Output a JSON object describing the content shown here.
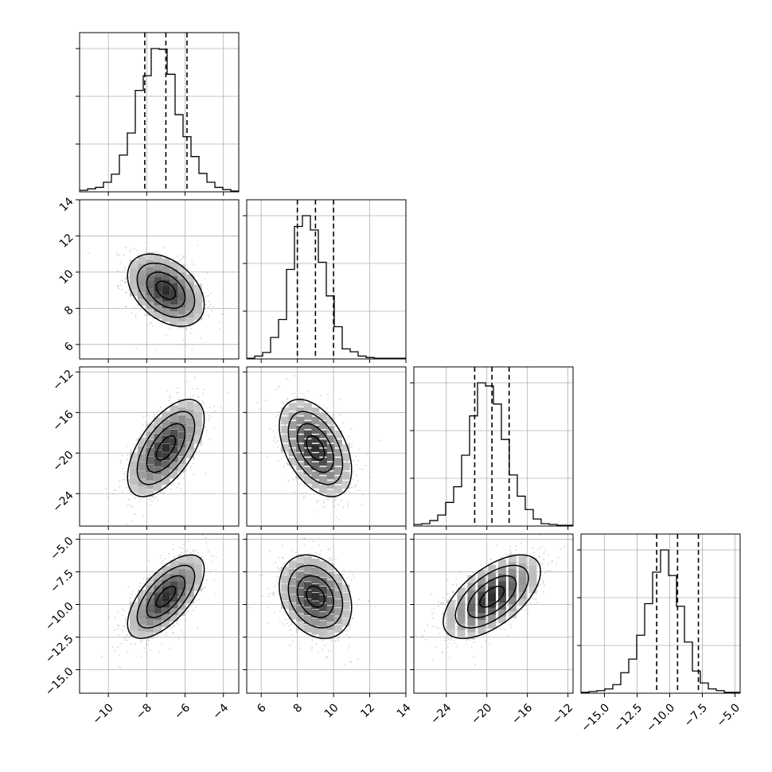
{
  "figure": {
    "type": "corner_plot",
    "n_params": 4
  },
  "chart_data": {
    "type": "corner",
    "grid": true,
    "parameters": [
      {
        "index": 0,
        "range": [
          -11.5,
          -3.2
        ],
        "ticks": [
          -10,
          -8,
          -6,
          -4
        ],
        "tick_labels": [
          "−10",
          "−8",
          "−6",
          "−4"
        ],
        "quantiles": [
          -8.1,
          -7.0,
          -5.9
        ],
        "hist": {
          "edges_start": -11.5,
          "bin_width": 0.415,
          "counts": [
            2,
            4,
            6,
            13,
            24,
            50,
            80,
            138,
            158,
            195,
            194,
            160,
            105,
            75,
            48,
            25,
            13,
            6,
            3,
            1
          ]
        }
      },
      {
        "index": 1,
        "range": [
          5.2,
          14.0
        ],
        "ticks": [
          6,
          8,
          10,
          12,
          14
        ],
        "tick_labels": [
          "6",
          "8",
          "10",
          "12",
          "14"
        ],
        "quantiles": [
          8.0,
          9.0,
          10.0
        ],
        "hist": {
          "edges_start": 5.2,
          "bin_width": 0.44,
          "counts": [
            1,
            4,
            9,
            30,
            55,
            125,
            185,
            200,
            180,
            135,
            88,
            45,
            14,
            10,
            4,
            2,
            1,
            1,
            1,
            1
          ]
        }
      },
      {
        "index": 2,
        "range": [
          -27.2,
          -11.5
        ],
        "ticks": [
          -24,
          -20,
          -16,
          -12
        ],
        "tick_labels": [
          "−24",
          "−20",
          "−16",
          "−12"
        ],
        "quantiles": [
          -21.2,
          -19.5,
          -17.8
        ],
        "hist": {
          "edges_start": -27.2,
          "bin_width": 0.785,
          "counts": [
            2,
            3,
            7,
            14,
            30,
            50,
            90,
            140,
            182,
            178,
            155,
            110,
            65,
            38,
            21,
            9,
            3,
            2,
            1,
            1
          ]
        }
      },
      {
        "index": 3,
        "range": [
          -16.8,
          -4.6
        ],
        "ticks": [
          -15.0,
          -12.5,
          -10.0,
          -7.5,
          -5.0
        ],
        "tick_labels": [
          "−15.0",
          "−12.5",
          "−10.0",
          "−7.5",
          "−5.0"
        ],
        "quantiles": [
          -11.0,
          -9.4,
          -7.8
        ],
        "hist": {
          "edges_start": -16.8,
          "bin_width": 0.61,
          "counts": [
            1,
            2,
            3,
            5,
            10,
            24,
            40,
            68,
            105,
            142,
            168,
            138,
            102,
            60,
            26,
            12,
            5,
            3,
            1,
            1
          ]
        }
      }
    ],
    "pairs": [
      {
        "row": 1,
        "col": 0,
        "mean": [
          -7.0,
          9.0
        ],
        "sigma": [
          1.0,
          1.0
        ],
        "rho": -0.4
      },
      {
        "row": 2,
        "col": 0,
        "mean": [
          -7.0,
          -19.5
        ],
        "sigma": [
          1.0,
          2.4
        ],
        "rho": 0.6
      },
      {
        "row": 2,
        "col": 1,
        "mean": [
          9.0,
          -19.5
        ],
        "sigma": [
          1.0,
          2.4
        ],
        "rho": -0.45
      },
      {
        "row": 3,
        "col": 0,
        "mean": [
          -7.0,
          -9.4
        ],
        "sigma": [
          1.0,
          1.6
        ],
        "rho": 0.65
      },
      {
        "row": 3,
        "col": 1,
        "mean": [
          9.0,
          -9.4
        ],
        "sigma": [
          1.0,
          1.6
        ],
        "rho": -0.25
      },
      {
        "row": 3,
        "col": 2,
        "mean": [
          -19.5,
          -9.4
        ],
        "sigma": [
          2.4,
          1.6
        ],
        "rho": 0.6
      }
    ],
    "contour_levels_sigma": [
      0.5,
      1.0,
      1.5,
      2.0
    ],
    "colors": {
      "points": "#9e9e9e",
      "hist": "#000000",
      "grid": "#b0b0b0",
      "contour": "#000000"
    }
  }
}
